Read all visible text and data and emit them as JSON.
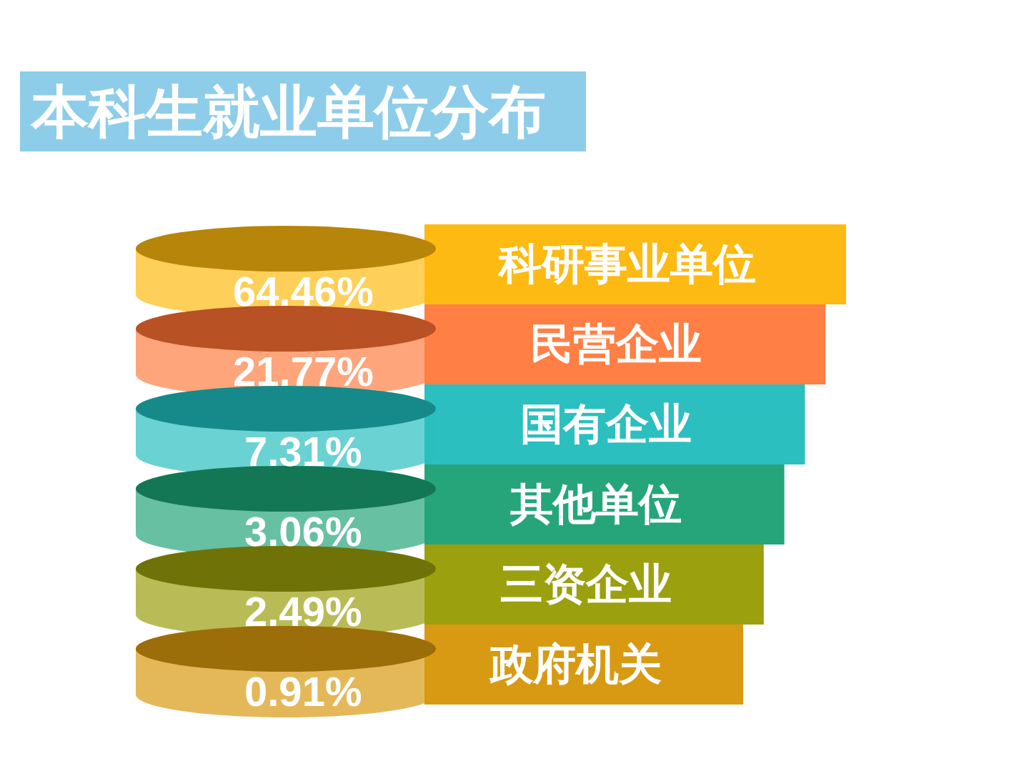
{
  "chart_data": {
    "type": "other",
    "title": "本科生就业单位分布",
    "categories": [
      "科研事业单位",
      "民营企业",
      "国有企业",
      "其他单位",
      "三资企业",
      "政府机关"
    ],
    "values": [
      64.46,
      21.77,
      7.31,
      3.06,
      2.49,
      0.91
    ],
    "value_labels": [
      "64.46%",
      "21.77%",
      "7.31%",
      "3.06%",
      "2.49%",
      "0.91%"
    ],
    "colors": [
      "#fdba12",
      "#ff7f45",
      "#2bbfbf",
      "#26a57a",
      "#9ba00e",
      "#d89a12"
    ]
  }
}
